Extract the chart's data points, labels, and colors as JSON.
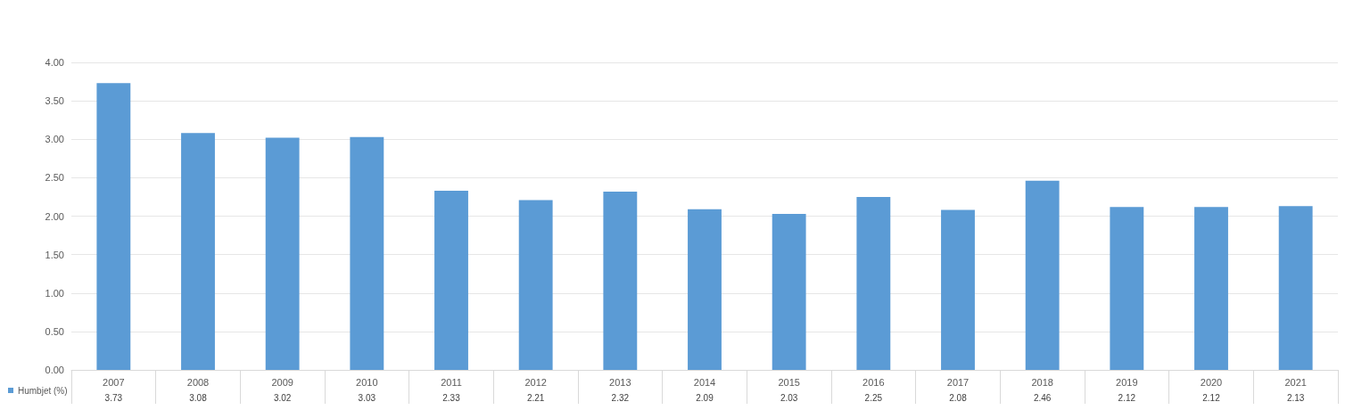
{
  "chart_data": {
    "type": "bar",
    "categories": [
      "2007",
      "2008",
      "2009",
      "2010",
      "2011",
      "2012",
      "2013",
      "2014",
      "2015",
      "2016",
      "2017",
      "2018",
      "2019",
      "2020",
      "2021"
    ],
    "series": [
      {
        "name": "Humbjet (%)",
        "color": "#5b9bd5",
        "values": [
          3.73,
          3.08,
          3.02,
          3.03,
          2.33,
          2.21,
          2.32,
          2.09,
          2.03,
          2.25,
          2.08,
          2.46,
          2.12,
          2.12,
          2.13
        ]
      }
    ],
    "ylim": [
      0,
      4
    ],
    "yticks": [
      {
        "value": 0,
        "label": "0.00"
      },
      {
        "value": 0.5,
        "label": "0.50"
      },
      {
        "value": 1,
        "label": "1.00"
      },
      {
        "value": 1.5,
        "label": "1.50"
      },
      {
        "value": 2,
        "label": "2.00"
      },
      {
        "value": 2.5,
        "label": "2.50"
      },
      {
        "value": 3,
        "label": "3.00"
      },
      {
        "value": 3.5,
        "label": "3.50"
      },
      {
        "value": 4,
        "label": "4.00"
      }
    ],
    "grid": "y",
    "legend": "bottom left",
    "data_labels": true
  }
}
